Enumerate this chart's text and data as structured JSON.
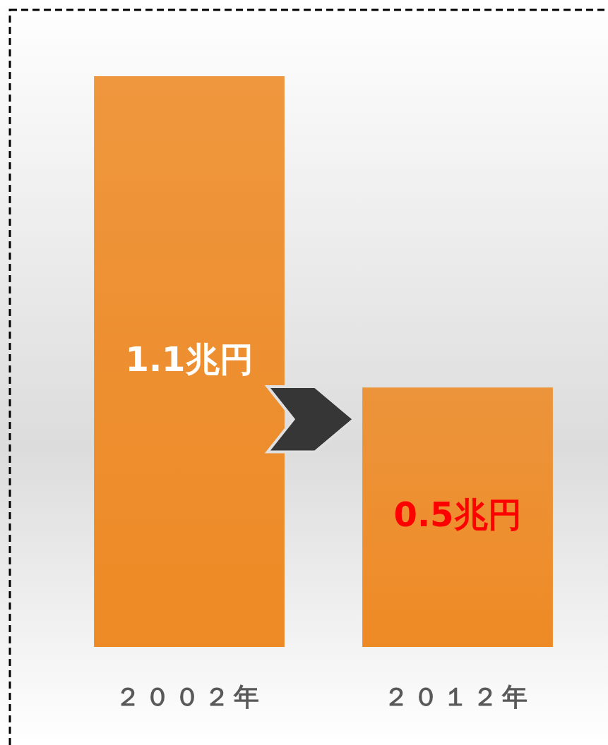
{
  "chart_data": {
    "type": "bar",
    "categories": [
      "２００２年",
      "２０１２年"
    ],
    "values": [
      1.1,
      0.5
    ],
    "value_labels": [
      "1.1兆円",
      "0.5兆円"
    ],
    "color": "#ee8a25"
  }
}
